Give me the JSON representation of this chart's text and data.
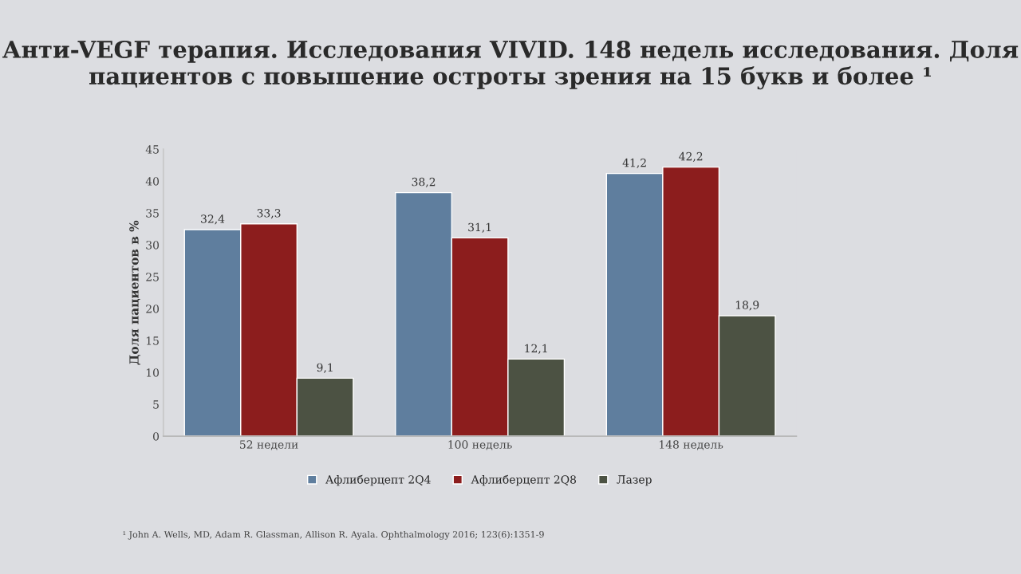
{
  "chart_data": {
    "type": "bar",
    "title": "Анти-VEGF терапия. Исследования VIVID. 148 недель исследования. Доля пациентов с повышение остроты зрения на 15 букв и более ¹",
    "ylabel": "Доля пациентов в %",
    "categories": [
      "52 недели",
      "100 недель",
      "148 недель"
    ],
    "series": [
      {
        "name": "Афлиберцепт 2Q4",
        "color": "#5f7e9e",
        "values": [
          32.4,
          38.2,
          41.2
        ],
        "value_labels": [
          "32,4",
          "38,2",
          "41,2"
        ]
      },
      {
        "name": "Афлиберцепт 2Q8",
        "color": "#8c1d1d",
        "values": [
          33.3,
          31.1,
          42.2
        ],
        "value_labels": [
          "33,3",
          "31,1",
          "42,2"
        ]
      },
      {
        "name": "Лазер",
        "color": "#4c5243",
        "values": [
          9.1,
          12.1,
          18.9
        ],
        "value_labels": [
          "9,1",
          "12,1",
          "18,9"
        ]
      }
    ],
    "ylim": [
      0,
      45
    ],
    "yticks": [
      0,
      5,
      10,
      15,
      20,
      25,
      30,
      35,
      40,
      45
    ],
    "grid": false,
    "legend": "bottom",
    "annotations": [
      "¹ John A. Wells, MD, Adam R. Glassman, Allison R. Ayala. Ophthalmology 2016; 123(6):1351-9"
    ]
  }
}
